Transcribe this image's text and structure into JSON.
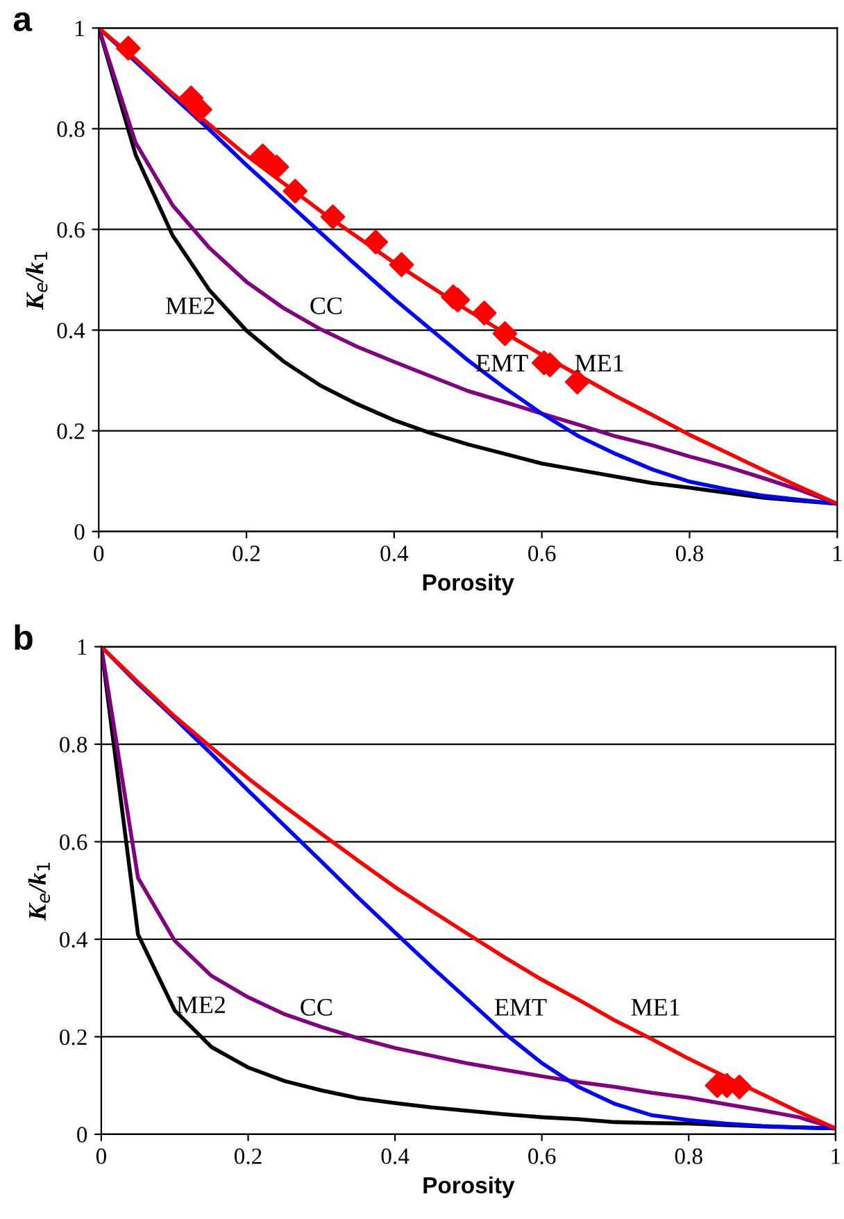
{
  "chart_data": [
    {
      "type": "line",
      "title": "a",
      "xlabel": "Porosity",
      "ylabel": "K$_{e}$/k$_{1}$",
      "x": [
        0,
        0.05,
        0.1,
        0.15,
        0.2,
        0.25,
        0.3,
        0.35,
        0.4,
        0.45,
        0.5,
        0.55,
        0.6,
        0.65,
        0.7,
        0.75,
        0.8,
        0.85,
        0.9,
        0.95,
        1
      ],
      "xlim": [
        0,
        1
      ],
      "ylim": [
        0,
        1
      ],
      "xticks": [
        0,
        0.2,
        0.4,
        0.6,
        0.8,
        1
      ],
      "yticks": [
        0,
        0.2,
        0.4,
        0.6,
        0.8,
        1
      ],
      "grid": "y",
      "marker": "none",
      "line_style": "solid",
      "series": [
        {
          "name": "ME2",
          "color": "#000000",
          "values": [
            1,
            0.748,
            0.588,
            0.479,
            0.399,
            0.338,
            0.29,
            0.253,
            0.221,
            0.195,
            0.173,
            0.154,
            0.135,
            0.122,
            0.109,
            0.096,
            0.087,
            0.077,
            0.067,
            0.061,
            0.055
          ]
        },
        {
          "name": "CC",
          "color": "#800080",
          "values": [
            1,
            0.772,
            0.648,
            0.563,
            0.496,
            0.444,
            0.402,
            0.367,
            0.337,
            0.308,
            0.279,
            0.257,
            0.234,
            0.212,
            0.189,
            0.171,
            0.149,
            0.129,
            0.106,
            0.082,
            0.055
          ]
        },
        {
          "name": "EMT",
          "color": "#0000ff",
          "values": [
            1,
            0.933,
            0.865,
            0.798,
            0.728,
            0.661,
            0.594,
            0.527,
            0.462,
            0.401,
            0.34,
            0.285,
            0.234,
            0.189,
            0.154,
            0.123,
            0.099,
            0.084,
            0.071,
            0.063,
            0.055
          ]
        },
        {
          "name": "ME1",
          "color": "#ff0000",
          "values": [
            1,
            0.938,
            0.87,
            0.808,
            0.747,
            0.692,
            0.637,
            0.585,
            0.534,
            0.486,
            0.439,
            0.394,
            0.351,
            0.31,
            0.269,
            0.231,
            0.192,
            0.157,
            0.122,
            0.088,
            0.055
          ]
        },
        {
          "type": "scatter",
          "marker": "diamond",
          "color": "#ff0000",
          "x": [
            0.04,
            0.125,
            0.137,
            0.222,
            0.241,
            0.266,
            0.317,
            0.375,
            0.41,
            0.48,
            0.486,
            0.522,
            0.55,
            0.603,
            0.611,
            0.648
          ],
          "values": [
            0.96,
            0.861,
            0.838,
            0.746,
            0.724,
            0.676,
            0.625,
            0.575,
            0.53,
            0.466,
            0.46,
            0.434,
            0.393,
            0.335,
            0.331,
            0.297
          ]
        }
      ]
    },
    {
      "type": "line",
      "title": "b",
      "xlabel": "Porosity",
      "ylabel": "K$_{e}$/k$_{1}$",
      "x": [
        0,
        0.05,
        0.1,
        0.15,
        0.2,
        0.25,
        0.3,
        0.35,
        0.4,
        0.45,
        0.5,
        0.55,
        0.6,
        0.65,
        0.7,
        0.75,
        0.8,
        0.85,
        0.9,
        0.95,
        1
      ],
      "xlim": [
        0,
        1
      ],
      "ylim": [
        0,
        1
      ],
      "xticks": [
        0,
        0.2,
        0.4,
        0.6,
        0.8,
        1
      ],
      "yticks": [
        0,
        0.2,
        0.4,
        0.6,
        0.8,
        1
      ],
      "grid": "y",
      "marker": "none",
      "line_style": "solid",
      "series": [
        {
          "name": "ME2",
          "color": "#000000",
          "values": [
            1,
            0.41,
            0.254,
            0.179,
            0.137,
            0.109,
            0.09,
            0.074,
            0.064,
            0.055,
            0.048,
            0.041,
            0.035,
            0.031,
            0.025,
            0.023,
            0.022,
            0.019,
            0.016,
            0.014,
            0.012
          ]
        },
        {
          "name": "CC",
          "color": "#800080",
          "values": [
            1,
            0.526,
            0.397,
            0.325,
            0.281,
            0.246,
            0.22,
            0.197,
            0.177,
            0.161,
            0.145,
            0.132,
            0.119,
            0.107,
            0.097,
            0.085,
            0.075,
            0.062,
            0.049,
            0.035,
            0.012
          ]
        },
        {
          "name": "EMT",
          "color": "#0000ff",
          "values": [
            1,
            0.924,
            0.853,
            0.78,
            0.705,
            0.632,
            0.559,
            0.485,
            0.414,
            0.343,
            0.275,
            0.206,
            0.146,
            0.097,
            0.062,
            0.039,
            0.029,
            0.022,
            0.017,
            0.014,
            0.012
          ]
        },
        {
          "name": "ME1",
          "color": "#ff0000",
          "values": [
            1,
            0.927,
            0.857,
            0.793,
            0.73,
            0.672,
            0.616,
            0.561,
            0.507,
            0.458,
            0.41,
            0.362,
            0.317,
            0.276,
            0.233,
            0.195,
            0.155,
            0.118,
            0.082,
            0.046,
            0.012
          ]
        },
        {
          "type": "scatter",
          "marker": "diamond",
          "color": "#ff0000",
          "x": [
            0.839,
            0.852,
            0.869
          ],
          "values": [
            0.1,
            0.1,
            0.097
          ]
        }
      ]
    }
  ]
}
